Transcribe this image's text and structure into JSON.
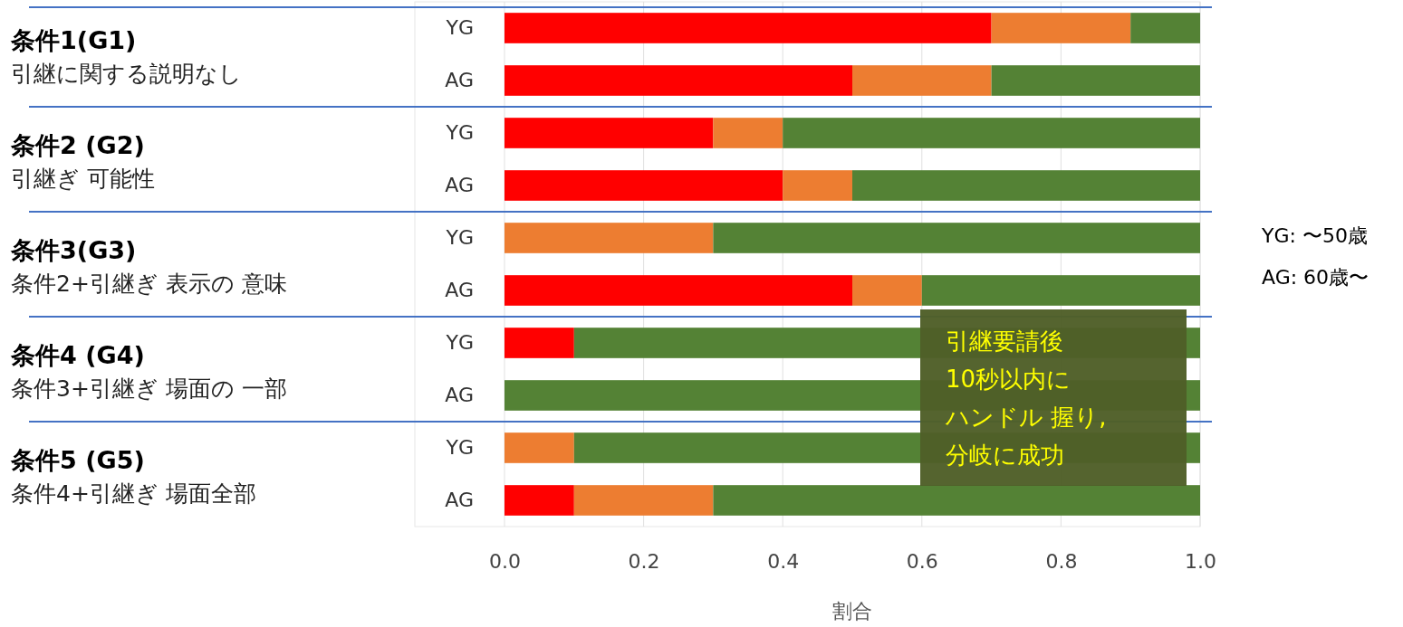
{
  "chart_data": {
    "type": "bar",
    "orientation": "horizontal",
    "stacked": true,
    "categories": [
      "YG",
      "AG",
      "YG",
      "AG",
      "YG",
      "AG",
      "YG",
      "AG",
      "YG",
      "AG"
    ],
    "series": [
      {
        "color": "#ff0000",
        "values": [
          0.7,
          0.5,
          0.3,
          0.4,
          0,
          0.5,
          0.1,
          0,
          0,
          0.1
        ]
      },
      {
        "color": "#ed7d31",
        "values": [
          0.2,
          0.2,
          0.1,
          0.1,
          0.3,
          0.1,
          0,
          0,
          0.1,
          0.2
        ]
      },
      {
        "color": "#548235",
        "values": [
          0.1,
          0.3,
          0.6,
          0.5,
          0.7,
          0.4,
          0.9,
          1,
          0.9,
          0.7
        ]
      }
    ],
    "xlim": [
      0,
      1
    ],
    "xticks": [
      {
        "value": 0,
        "label": "0.0"
      },
      {
        "value": 0.2,
        "label": "0.2"
      },
      {
        "value": 0.4,
        "label": "0.4"
      },
      {
        "value": 0.6,
        "label": "0.6"
      },
      {
        "value": 0.8,
        "label": "0.8"
      },
      {
        "value": 1,
        "label": "1.0"
      }
    ],
    "xlabel": "割合",
    "grid": "x",
    "annotations": [
      "条件1(G1)",
      "引継に関する説明なし",
      "条件2 (G2)",
      "引継ぎ 可能性",
      "条件3(G3)",
      "条件2+引継ぎ 表示の 意味",
      "条件4 (G4)",
      "条件3+引継ぎ 場面の 一部",
      "条件5 (G5)",
      "条件4+引継ぎ 場面全部",
      "引継要請後",
      "10秒以内に",
      "ハンドル 握り,",
      "分岐に成功",
      "YG:  〜50歳",
      "AG: 60歳〜"
    ]
  }
}
